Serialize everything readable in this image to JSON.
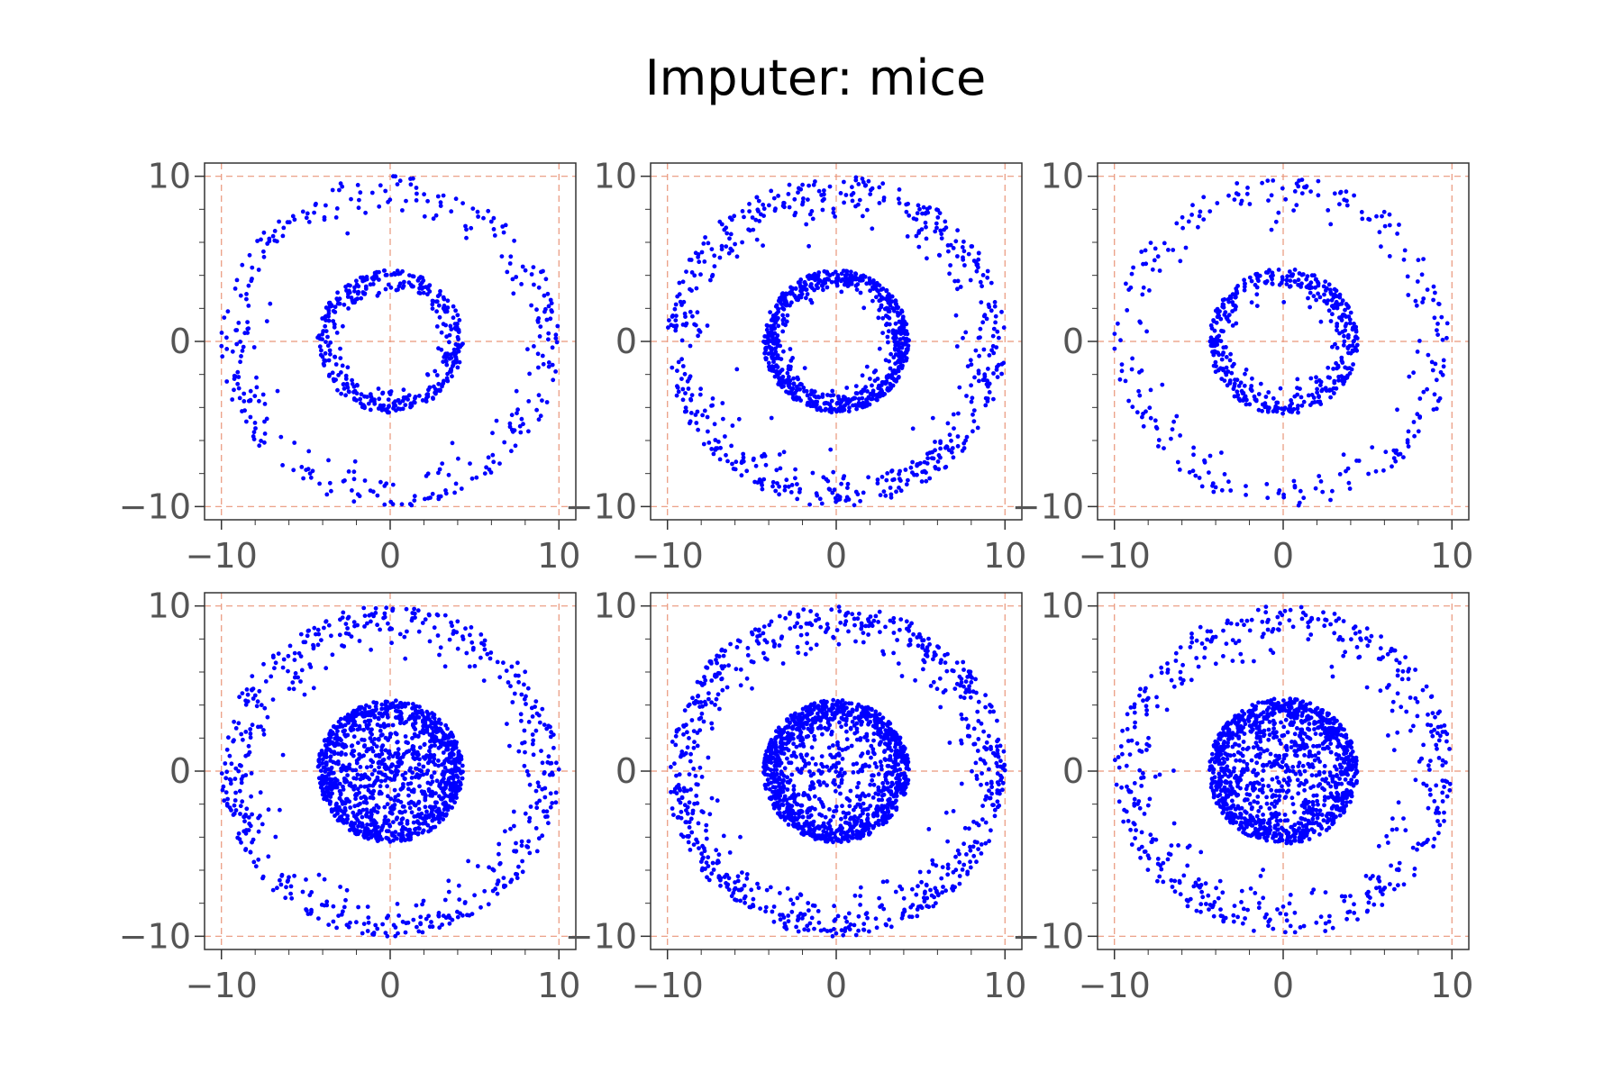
{
  "chart_data": {
    "type": "scatter",
    "title": "Imputer: mice",
    "layout": {
      "rows": 2,
      "cols": 3
    },
    "point_color": "#0000ff",
    "grid_color": "#e9967a",
    "grid": true,
    "xlim": [
      -11,
      11
    ],
    "ylim": [
      -10.8,
      10.8
    ],
    "xticks": [
      -10,
      0,
      10
    ],
    "yticks": [
      -10,
      0,
      10
    ],
    "xtick_labels": [
      "−10",
      "0",
      "10"
    ],
    "ytick_labels": [
      "−10",
      "0",
      "10"
    ],
    "xlabel": "",
    "ylabel": "",
    "subplots": [
      {
        "row": 0,
        "col": 0,
        "rings": [
          {
            "radius": 10,
            "count": 320,
            "width": 1.4
          },
          {
            "radius": 4.3,
            "count": 380,
            "width": 0.8
          }
        ],
        "fill": {
          "radius": 0,
          "count": 0
        }
      },
      {
        "row": 0,
        "col": 1,
        "rings": [
          {
            "radius": 10,
            "count": 560,
            "width": 1.6
          },
          {
            "radius": 4.3,
            "count": 720,
            "width": 0.8
          }
        ],
        "fill": {
          "radius": 0,
          "count": 0
        }
      },
      {
        "row": 0,
        "col": 2,
        "rings": [
          {
            "radius": 10,
            "count": 260,
            "width": 1.5
          },
          {
            "radius": 4.4,
            "count": 430,
            "width": 0.9
          }
        ],
        "fill": {
          "radius": 0,
          "count": 0
        }
      },
      {
        "row": 1,
        "col": 0,
        "rings": [
          {
            "radius": 10,
            "count": 520,
            "width": 1.6
          },
          {
            "radius": 4.3,
            "count": 500,
            "width": 0.9
          }
        ],
        "fill": {
          "radius": 4.3,
          "count": 700
        }
      },
      {
        "row": 1,
        "col": 1,
        "rings": [
          {
            "radius": 10,
            "count": 720,
            "width": 1.6
          },
          {
            "radius": 4.3,
            "count": 900,
            "width": 0.9
          }
        ],
        "fill": {
          "radius": 3.6,
          "count": 300
        }
      },
      {
        "row": 1,
        "col": 2,
        "rings": [
          {
            "radius": 10,
            "count": 480,
            "width": 1.7
          },
          {
            "radius": 4.4,
            "count": 550,
            "width": 0.9
          }
        ],
        "fill": {
          "radius": 4.4,
          "count": 650
        }
      }
    ]
  }
}
